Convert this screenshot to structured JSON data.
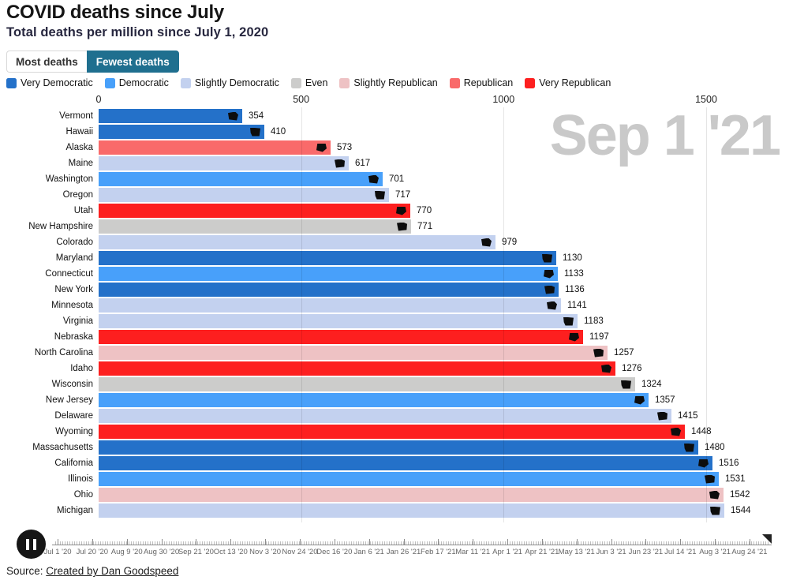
{
  "header": {
    "title": "COVID deaths since July",
    "subtitle": "Total deaths per million since July 1, 2020"
  },
  "toggle": {
    "options": [
      {
        "label": "Most deaths",
        "active": false
      },
      {
        "label": "Fewest deaths",
        "active": true
      }
    ],
    "active_color": "#1f6f8f"
  },
  "legend": [
    {
      "label": "Very Democratic",
      "color": "#2471c9"
    },
    {
      "label": "Democratic",
      "color": "#48a0fa"
    },
    {
      "label": "Slightly Democratic",
      "color": "#c3d1ef"
    },
    {
      "label": "Even",
      "color": "#cccccb"
    },
    {
      "label": "Slightly Republican",
      "color": "#eec2c4"
    },
    {
      "label": "Republican",
      "color": "#f96a6a"
    },
    {
      "label": "Very Republican",
      "color": "#fd1f1f"
    }
  ],
  "chart_data": {
    "type": "bar",
    "orientation": "horizontal",
    "title": "COVID deaths since July",
    "xlabel": "Total deaths per million since July 1, 2020",
    "frame_date": "Sep 1 '21",
    "x_ticks": [
      0,
      500,
      1000,
      1500
    ],
    "xlim": [
      0,
      1660
    ],
    "grid": true,
    "legend_position": "top",
    "sort": "fewest deaths first",
    "bars": [
      {
        "state": "Vermont",
        "value": 354,
        "category": "Very Democratic"
      },
      {
        "state": "Hawaii",
        "value": 410,
        "category": "Very Democratic"
      },
      {
        "state": "Alaska",
        "value": 573,
        "category": "Republican"
      },
      {
        "state": "Maine",
        "value": 617,
        "category": "Slightly Democratic"
      },
      {
        "state": "Washington",
        "value": 701,
        "category": "Democratic"
      },
      {
        "state": "Oregon",
        "value": 717,
        "category": "Slightly Democratic"
      },
      {
        "state": "Utah",
        "value": 770,
        "category": "Very Republican"
      },
      {
        "state": "New Hampshire",
        "value": 771,
        "category": "Even"
      },
      {
        "state": "Colorado",
        "value": 979,
        "category": "Slightly Democratic"
      },
      {
        "state": "Maryland",
        "value": 1130,
        "category": "Very Democratic"
      },
      {
        "state": "Connecticut",
        "value": 1133,
        "category": "Democratic"
      },
      {
        "state": "New York",
        "value": 1136,
        "category": "Very Democratic"
      },
      {
        "state": "Minnesota",
        "value": 1141,
        "category": "Slightly Democratic"
      },
      {
        "state": "Virginia",
        "value": 1183,
        "category": "Slightly Democratic"
      },
      {
        "state": "Nebraska",
        "value": 1197,
        "category": "Very Republican"
      },
      {
        "state": "North Carolina",
        "value": 1257,
        "category": "Slightly Republican"
      },
      {
        "state": "Idaho",
        "value": 1276,
        "category": "Very Republican"
      },
      {
        "state": "Wisconsin",
        "value": 1324,
        "category": "Even"
      },
      {
        "state": "New Jersey",
        "value": 1357,
        "category": "Democratic"
      },
      {
        "state": "Delaware",
        "value": 1415,
        "category": "Slightly Democratic"
      },
      {
        "state": "Wyoming",
        "value": 1448,
        "category": "Very Republican"
      },
      {
        "state": "Massachusetts",
        "value": 1480,
        "category": "Very Democratic"
      },
      {
        "state": "California",
        "value": 1516,
        "category": "Very Democratic"
      },
      {
        "state": "Illinois",
        "value": 1531,
        "category": "Democratic"
      },
      {
        "state": "Ohio",
        "value": 1542,
        "category": "Slightly Republican"
      },
      {
        "state": "Michigan",
        "value": 1544,
        "category": "Slightly Democratic"
      }
    ]
  },
  "timeline": {
    "dates": [
      "Jul 1 '20",
      "Jul 20 '20",
      "Aug 9 '20",
      "Aug 30 '20",
      "Sep 21 '20",
      "Oct 13 '20",
      "Nov 3 '20",
      "Nov 24 '20",
      "Dec 16 '20",
      "Jan 6 '21",
      "Jan 26 '21",
      "Feb 17 '21",
      "Mar 11 '21",
      "Apr 1 '21",
      "Apr 21 '21",
      "May 13 '21",
      "Jun 3 '21",
      "Jun 23 '21",
      "Jul 14 '21",
      "Aug 3 '21",
      "Aug 24 '21"
    ]
  },
  "controls": {
    "state": "paused"
  },
  "footer": {
    "source_prefix": "Source: ",
    "source_link": "Created by Dan Goodspeed"
  }
}
